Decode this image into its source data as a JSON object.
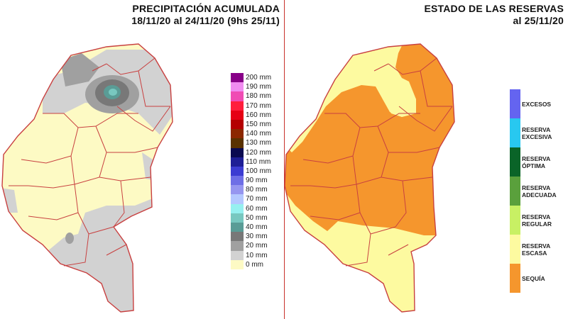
{
  "left_map": {
    "title_line1": "PRECIPITACIÓN ACUMULADA",
    "title_line2": "18/11/20 al 24/11/20 (9hs 25/11)",
    "legend": [
      {
        "label": "200 mm",
        "color": "#880088"
      },
      {
        "label": "190 mm",
        "color": "#f08cf0"
      },
      {
        "label": "180 mm",
        "color": "#f04cb4"
      },
      {
        "label": "170 mm",
        "color": "#ff1e3c"
      },
      {
        "label": "160 mm",
        "color": "#e60014"
      },
      {
        "label": "150 mm",
        "color": "#b40000"
      },
      {
        "label": "140 mm",
        "color": "#8c2800"
      },
      {
        "label": "130 mm",
        "color": "#5a3200"
      },
      {
        "label": "120 mm",
        "color": "#0a0a50"
      },
      {
        "label": "110 mm",
        "color": "#1e1e96"
      },
      {
        "label": "100 mm",
        "color": "#3c3cd2"
      },
      {
        "label": "90 mm",
        "color": "#6e6ee6"
      },
      {
        "label": "80 mm",
        "color": "#9696f0"
      },
      {
        "label": "70 mm",
        "color": "#b4c8ff"
      },
      {
        "label": "60 mm",
        "color": "#96f0f0"
      },
      {
        "label": "50 mm",
        "color": "#78c8c0"
      },
      {
        "label": "40 mm",
        "color": "#5a9c96"
      },
      {
        "label": "30 mm",
        "color": "#787878"
      },
      {
        "label": "20 mm",
        "color": "#a0a0a0"
      },
      {
        "label": "10 mm",
        "color": "#d2d2d2"
      },
      {
        "label": "0 mm",
        "color": "#fdfac4"
      }
    ]
  },
  "right_map": {
    "title_line1": "ESTADO DE LAS RESERVAS",
    "title_line2": "al 25/11/20",
    "legend": [
      {
        "label": "EXCESOS",
        "color": "#6464f0"
      },
      {
        "label": "RESERVA EXCESIVA",
        "color": "#28c8f0"
      },
      {
        "label": "RESERVA ÓPTIMA",
        "color": "#0a6428"
      },
      {
        "label": "RESERVA ADECUADA",
        "color": "#5aa03c"
      },
      {
        "label": "RESERVA REGULAR",
        "color": "#c8f064"
      },
      {
        "label": "RESERVA ESCASA",
        "color": "#fdfaa0"
      },
      {
        "label": "SEQUÍA",
        "color": "#f5962d"
      }
    ]
  }
}
